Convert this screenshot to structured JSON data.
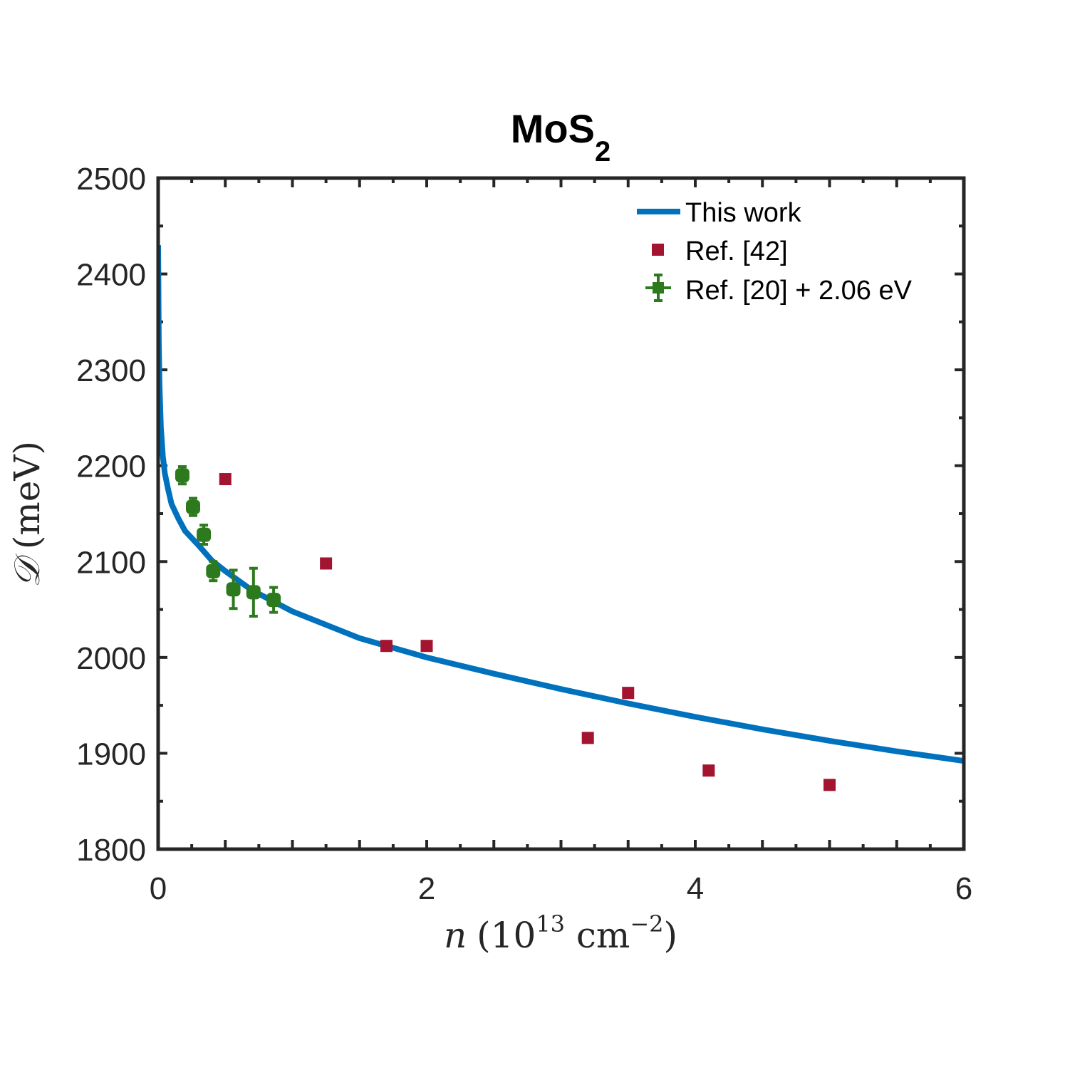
{
  "chart_data": {
    "type": "line",
    "title": "MoS",
    "title_subscript": "2",
    "xlabel_var": "n",
    "xlabel_unit_open": "(10",
    "xlabel_exp": "13",
    "xlabel_unit_mid": " cm",
    "xlabel_unit_exp": "−2",
    "xlabel_unit_close": ")",
    "ylabel_var": "𝒟",
    "ylabel_unit": "(meV)",
    "xlim": [
      0,
      6
    ],
    "ylim": [
      1800,
      2500
    ],
    "xticks": [
      0,
      2,
      4,
      6
    ],
    "yticks": [
      1800,
      1900,
      2000,
      2100,
      2200,
      2300,
      2400,
      2500
    ],
    "legend_position": "top-right",
    "series": [
      {
        "name": "This work",
        "kind": "line",
        "color": "#0072BD",
        "x": [
          0.0,
          0.005,
          0.01,
          0.02,
          0.035,
          0.05,
          0.075,
          0.1,
          0.15,
          0.2,
          0.3,
          0.4,
          0.5,
          0.7,
          1.0,
          1.5,
          2.0,
          2.5,
          3.0,
          3.5,
          4.0,
          4.5,
          5.0,
          5.5,
          6.0
        ],
        "y": [
          2430,
          2330,
          2285,
          2240,
          2210,
          2192,
          2175,
          2160,
          2145,
          2132,
          2117,
          2101,
          2090,
          2070,
          2048,
          2020,
          2000,
          1983,
          1967,
          1952,
          1938,
          1925,
          1913,
          1902,
          1892
        ]
      },
      {
        "name": "Ref. [42]",
        "kind": "square",
        "color": "#A2142F",
        "x": [
          0.5,
          1.25,
          1.7,
          2.0,
          3.2,
          3.5,
          4.1,
          5.0
        ],
        "y": [
          2186,
          2098,
          2012,
          2012,
          1916,
          1963,
          1882,
          1867
        ]
      },
      {
        "name": "Ref. [20] + 2.06 eV",
        "kind": "errorbar",
        "color": "#2D7A1E",
        "x": [
          0.18,
          0.26,
          0.34,
          0.41,
          0.56,
          0.71,
          0.86
        ],
        "y": [
          2190,
          2157,
          2128,
          2090,
          2071,
          2068,
          2060
        ],
        "yerr": [
          9,
          9,
          10,
          10,
          20,
          25,
          13
        ],
        "xerr": [
          0.04,
          0.04,
          0.04,
          0.04,
          0.05,
          0.05,
          0.05
        ]
      }
    ]
  }
}
